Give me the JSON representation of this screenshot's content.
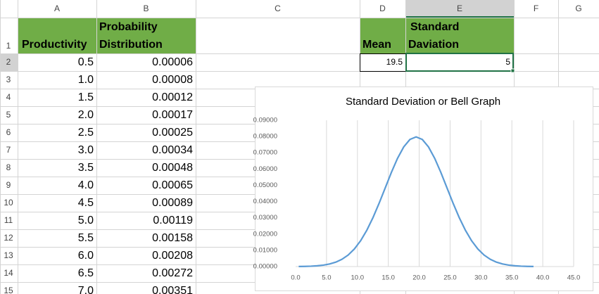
{
  "sheet": {
    "columns": [
      "A",
      "B",
      "C",
      "D",
      "E",
      "F",
      "G"
    ],
    "rows": [
      1,
      2,
      3,
      4,
      5,
      6,
      7,
      8,
      9,
      10,
      11,
      12,
      13,
      14,
      15
    ],
    "header_row": {
      "A": "Productivity",
      "B": [
        "Probability",
        "Distribution"
      ],
      "D": "Mean",
      "E": [
        "Standard",
        "Daviation"
      ]
    },
    "table": {
      "rows": [
        [
          "0.5",
          "0.00006"
        ],
        [
          "1.0",
          "0.00008"
        ],
        [
          "1.5",
          "0.00012"
        ],
        [
          "2.0",
          "0.00017"
        ],
        [
          "2.5",
          "0.00025"
        ],
        [
          "3.0",
          "0.00034"
        ],
        [
          "3.5",
          "0.00048"
        ],
        [
          "4.0",
          "0.00065"
        ],
        [
          "4.5",
          "0.00089"
        ],
        [
          "5.0",
          "0.00119"
        ],
        [
          "5.5",
          "0.00158"
        ],
        [
          "6.0",
          "0.00208"
        ],
        [
          "6.5",
          "0.00272"
        ],
        [
          "7.0",
          "0.00351"
        ]
      ]
    },
    "stats": {
      "mean": "19.5",
      "std": "5"
    }
  },
  "chart_data": {
    "type": "line",
    "title": "Standard Deviation or Bell Graph",
    "x": [
      0.5,
      1.5,
      2.5,
      3.5,
      4.5,
      5.5,
      6.5,
      7.5,
      8.5,
      9.5,
      10.5,
      11.5,
      12.5,
      13.5,
      14.5,
      15.5,
      16.5,
      17.5,
      18.5,
      19.5,
      20.5,
      21.5,
      22.5,
      23.5,
      24.5,
      25.5,
      26.5,
      27.5,
      28.5,
      29.5,
      30.5,
      31.5,
      32.5,
      33.5,
      34.5,
      35.5,
      36.5,
      37.5,
      38.5
    ],
    "series": [
      {
        "color": "#5b9bd5",
        "values": [
          6e-05,
          0.00012,
          0.00025,
          0.00048,
          0.00089,
          0.00158,
          0.00272,
          0.00448,
          0.00709,
          0.0108,
          0.01579,
          0.02218,
          0.02995,
          0.03884,
          0.04839,
          0.05794,
          0.06664,
          0.07365,
          0.07821,
          0.07979,
          0.07821,
          0.07365,
          0.06664,
          0.05794,
          0.04839,
          0.03884,
          0.02995,
          0.02218,
          0.01579,
          0.0108,
          0.00709,
          0.00448,
          0.00272,
          0.00158,
          0.00089,
          0.00048,
          0.00025,
          0.00012,
          6e-05
        ]
      }
    ],
    "xlim": [
      0,
      45
    ],
    "ylim": [
      0,
      0.09
    ],
    "xticks": [
      {
        "value": 0,
        "label": "0.0"
      },
      {
        "value": 5,
        "label": "5.0"
      },
      {
        "value": 10,
        "label": "10.0"
      },
      {
        "value": 15,
        "label": "15.0"
      },
      {
        "value": 20,
        "label": "20.0"
      },
      {
        "value": 25,
        "label": "25.0"
      },
      {
        "value": 30,
        "label": "30.0"
      },
      {
        "value": 35,
        "label": "35.0"
      },
      {
        "value": 40,
        "label": "40.0"
      },
      {
        "value": 45,
        "label": "45.0"
      }
    ],
    "yticks": [
      {
        "value": 0,
        "label": "0.00000"
      },
      {
        "value": 0.01,
        "label": "0.01000"
      },
      {
        "value": 0.02,
        "label": "0.02000"
      },
      {
        "value": 0.03,
        "label": "0.03000"
      },
      {
        "value": 0.04,
        "label": "0.04000"
      },
      {
        "value": 0.05,
        "label": "0.05000"
      },
      {
        "value": 0.06,
        "label": "0.06000"
      },
      {
        "value": 0.07,
        "label": "0.07000"
      },
      {
        "value": 0.08,
        "label": "0.08000"
      },
      {
        "value": 0.09,
        "label": "0.09000"
      }
    ],
    "grid": "x"
  }
}
